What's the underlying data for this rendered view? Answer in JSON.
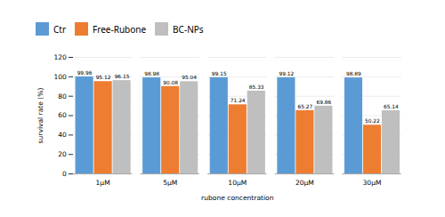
{
  "chart_data": {
    "type": "bar",
    "xlabel": "rubone concentration",
    "ylabel": "survival rate (%)",
    "categories": [
      "1μM",
      "5μM",
      "10μM",
      "20μM",
      "30μM"
    ],
    "series": [
      {
        "name": "Ctr",
        "color": "#5B9BD5",
        "values": [
          99.96,
          98.98,
          99.15,
          99.12,
          98.89
        ]
      },
      {
        "name": "Free-Rubone",
        "color": "#ED7D31",
        "values": [
          95.12,
          90.08,
          71.24,
          65.27,
          50.22
        ]
      },
      {
        "name": "BC-NPs",
        "color": "#BFBFBF",
        "values": [
          96.15,
          95.04,
          85.33,
          69.86,
          65.14
        ]
      }
    ],
    "ylim": [
      0,
      120
    ],
    "yticks": [
      0,
      20,
      40,
      60,
      80,
      100,
      120
    ],
    "grid": true,
    "data_labels": true,
    "legend": "top"
  }
}
